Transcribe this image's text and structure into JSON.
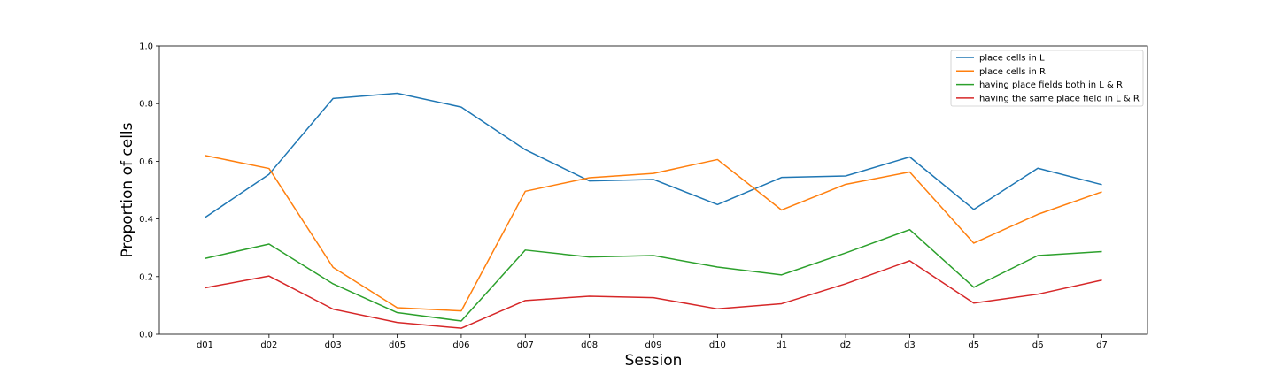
{
  "chart_data": {
    "type": "line",
    "title": "",
    "xlabel": "Session",
    "ylabel": "Proportion of cells",
    "ylim": [
      0.0,
      1.0
    ],
    "yticks": [
      "0.0",
      "0.2",
      "0.4",
      "0.6",
      "0.8",
      "1.0"
    ],
    "categories": [
      "d01",
      "d02",
      "d03",
      "d05",
      "d06",
      "d07",
      "d08",
      "d09",
      "d10",
      "d1",
      "d2",
      "d3",
      "d5",
      "d6",
      "d7"
    ],
    "grid": false,
    "legend_position": "top-right",
    "series": [
      {
        "name": "place cells in L",
        "color": "#1f77b4",
        "values": [
          0.405,
          0.555,
          0.818,
          0.836,
          0.788,
          0.64,
          0.532,
          0.537,
          0.45,
          0.544,
          0.549,
          0.615,
          0.433,
          0.576,
          0.519
        ]
      },
      {
        "name": "place cells in R",
        "color": "#ff7f0e",
        "values": [
          0.62,
          0.575,
          0.232,
          0.092,
          0.081,
          0.496,
          0.543,
          0.558,
          0.606,
          0.431,
          0.52,
          0.563,
          0.316,
          0.416,
          0.494
        ]
      },
      {
        "name": "having place fields both in L & R",
        "color": "#2ca02c",
        "values": [
          0.263,
          0.313,
          0.175,
          0.075,
          0.046,
          0.292,
          0.268,
          0.273,
          0.233,
          0.206,
          0.282,
          0.363,
          0.163,
          0.273,
          0.287
        ]
      },
      {
        "name": "having the same place field in L & R",
        "color": "#d62728",
        "values": [
          0.161,
          0.202,
          0.087,
          0.041,
          0.021,
          0.117,
          0.132,
          0.127,
          0.088,
          0.106,
          0.175,
          0.255,
          0.108,
          0.139,
          0.188
        ]
      }
    ]
  }
}
